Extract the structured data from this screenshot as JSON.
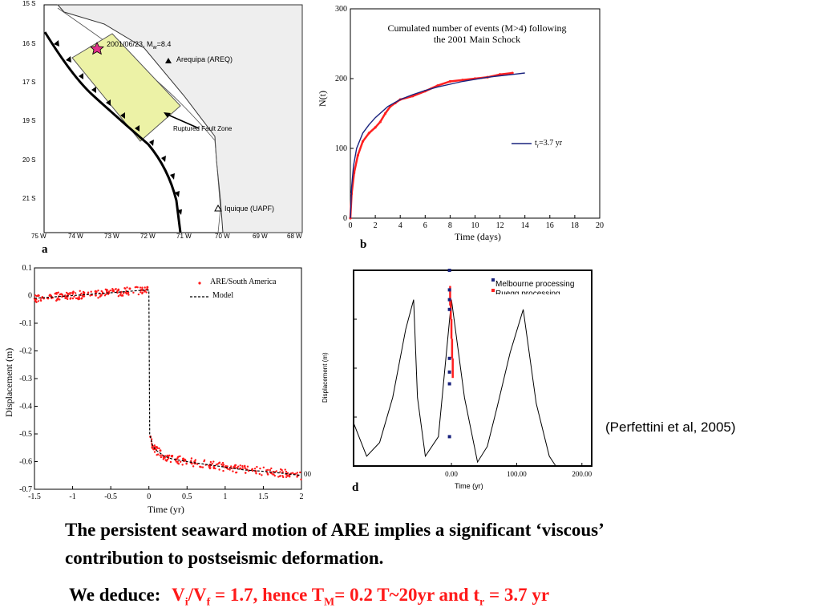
{
  "panels": {
    "a": {
      "letter": "a",
      "lat_labels": [
        "15 S",
        "16 S",
        "17 S",
        "19 S",
        "20 S",
        "21 S"
      ],
      "lon_labels": [
        "75 W",
        "74 W",
        "73 W",
        "72 W",
        "71 W",
        "70 W",
        "69 W",
        "68 W"
      ],
      "event_label": "2001/06/23, M",
      "event_sub": "w",
      "event_mag": "=8.4",
      "station1": "Arequipa (AREQ)",
      "station2": "Iquique (UAPF)",
      "zone_label": "Ruptured Fault Zone",
      "colors": {
        "zone": "#ecf2a6",
        "land": "#eeeeee",
        "star": "#e0318a"
      }
    },
    "b": {
      "letter": "b",
      "title_line1": "Cumulated number of events (M>4) following",
      "title_line2": "the 2001 Main Schock",
      "xlabel": "Time (days)",
      "ylabel": "N(t)",
      "legend_main": "t",
      "legend_sub": "r",
      "legend_rest": "=3.7 yr",
      "colors": {
        "model": "#1a237e",
        "data": "#ff2020"
      }
    },
    "c": {
      "xlabel": "Time (yr)",
      "ylabel": "Displacement (m)",
      "legend_data": "ARE/South America",
      "legend_model": "Model",
      "edge_mark": "00"
    },
    "d": {
      "letter": "d",
      "xlabel": "Time (yr)",
      "ylabel": "Displacement (m)",
      "legend1": "Melbourne processing",
      "legend2": "Ruegg processing",
      "colors": {
        "melbourne": "#1a237e",
        "ruegg": "#ff2020"
      }
    }
  },
  "chart_data": [
    {
      "type": "line",
      "title": "Cumulated number of events (M>4) following the 2001 Main Schock",
      "xlabel": "Time (days)",
      "ylabel": "N(t)",
      "xlim": [
        0,
        20
      ],
      "ylim": [
        0,
        300
      ],
      "x_ticks": [
        "0",
        "2",
        "4",
        "6",
        "8",
        "10",
        "12",
        "14",
        "16",
        "18",
        "20"
      ],
      "y_ticks": [
        "0",
        "100",
        "200",
        "300"
      ],
      "series": [
        {
          "name": "t_r=3.7 yr",
          "x": [
            0,
            0.1,
            0.25,
            0.5,
            1,
            1.5,
            2,
            3,
            4,
            5,
            6,
            7,
            8,
            9,
            10,
            11,
            12,
            13,
            14
          ],
          "values": [
            0,
            45,
            75,
            100,
            122,
            134,
            144,
            160,
            170,
            177,
            183,
            188,
            192,
            196,
            199,
            202,
            204,
            206,
            208
          ]
        },
        {
          "name": "",
          "x": [
            0,
            0.1,
            0.3,
            0.6,
            1.0,
            1.5,
            2.0,
            2.4,
            2.8,
            3.2,
            3.6,
            4.0,
            5.0,
            6.0,
            7.0,
            8.0,
            9.0,
            10.0,
            11.0,
            12.0,
            13.0
          ],
          "values": [
            0,
            35,
            65,
            90,
            110,
            122,
            130,
            138,
            150,
            160,
            165,
            170,
            175,
            182,
            190,
            196,
            198,
            200,
            202,
            206,
            208
          ]
        }
      ]
    },
    {
      "type": "scatter",
      "xlabel": "Time (yr)",
      "ylabel": "Displacement (m)",
      "xlim": [
        -1.5,
        2
      ],
      "ylim": [
        -0.7,
        0.1
      ],
      "x_ticks": [
        "-1.5",
        "-1",
        "-0.5",
        "0",
        "0.5",
        "1",
        "1.5",
        "2"
      ],
      "y_ticks": [
        "0.1",
        "0",
        "-0.1",
        "-0.2",
        "-0.3",
        "-0.4",
        "-0.5",
        "-0.6",
        "-0.7"
      ],
      "series": [
        {
          "name": "Model",
          "x": [
            -1.5,
            -1.0,
            -0.5,
            -0.05,
            0,
            0.01,
            0.05,
            0.1,
            0.2,
            0.3,
            0.5,
            0.75,
            1.0,
            1.25,
            1.5,
            1.75,
            2.0
          ],
          "values": [
            -0.01,
            0.0,
            0.01,
            0.02,
            0.02,
            -0.5,
            -0.545,
            -0.56,
            -0.58,
            -0.59,
            -0.6,
            -0.61,
            -0.62,
            -0.63,
            -0.635,
            -0.642,
            -0.65
          ]
        },
        {
          "name": "ARE/South America",
          "x": [
            -1.45,
            -1.3,
            -1.15,
            -1.0,
            -0.85,
            -0.7,
            -0.55,
            -0.4,
            -0.25,
            -0.1,
            -0.02,
            0.02,
            0.08,
            0.15,
            0.3,
            0.45,
            0.6,
            0.8,
            1.0,
            1.2,
            1.4,
            1.6,
            1.8,
            1.95
          ],
          "values": [
            0.0,
            0.0,
            0.005,
            0.01,
            0.01,
            0.015,
            0.02,
            0.02,
            0.025,
            0.02,
            0.03,
            -0.51,
            -0.55,
            -0.56,
            -0.58,
            -0.59,
            -0.6,
            -0.615,
            -0.62,
            -0.625,
            -0.635,
            -0.64,
            -0.645,
            -0.65
          ]
        }
      ]
    },
    {
      "type": "line",
      "xlabel": "Time (yr)",
      "ylabel": "Displacement (m)",
      "xlim": [
        -150,
        215
      ],
      "x_ticks": [
        "0.00",
        "100.00",
        "200.00"
      ],
      "y_ticks": [],
      "series": [
        {
          "name": "Model",
          "x": [
            -150,
            -130,
            -110,
            -90,
            -70,
            -58,
            -52,
            -40,
            -20,
            0,
            20,
            40,
            55,
            70,
            90,
            110,
            130,
            150,
            160
          ],
          "values": [
            0.22,
            0.05,
            0.12,
            0.35,
            0.7,
            0.85,
            0.35,
            0.05,
            0.15,
            0.85,
            0.35,
            0.02,
            0.1,
            0.3,
            0.58,
            0.8,
            0.32,
            0.05,
            0.0
          ]
        },
        {
          "name": "Melbourne processing",
          "x": [
            -3,
            -3,
            -3,
            -3,
            -3,
            -3,
            -3,
            -3
          ],
          "values": [
            1.0,
            0.9,
            0.85,
            0.8,
            0.55,
            0.48,
            0.42,
            0.15
          ]
        },
        {
          "name": "Ruegg processing",
          "x": [
            -2,
            -1,
            0,
            1,
            2
          ],
          "values": [
            0.92,
            0.85,
            0.75,
            0.65,
            0.55
          ]
        }
      ]
    }
  ],
  "citation": "(Perfettini et al, 2005)",
  "conclusion": {
    "line1": "The persistent seaward motion of ARE implies a significant ‘viscous’",
    "line2": "contribution to postseismic deformation."
  },
  "deduce": {
    "lead": "We deduce:",
    "v1": "V",
    "v1_sub": "i",
    "slash": "/V",
    "v2_sub": "f",
    "mid": " = 1.7, hence T",
    "t_sub": "M",
    "mid2": "= 0.2 T~20yr and t",
    "r_sub": "r",
    "end": " = 3.7 yr"
  }
}
